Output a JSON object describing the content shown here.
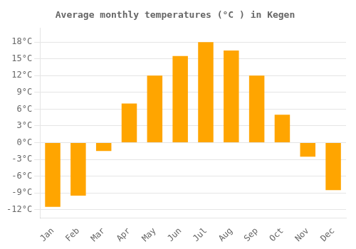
{
  "chart_data": {
    "type": "bar",
    "title": "Average monthly temperatures (°C ) in Kegen",
    "categories": [
      "Jan",
      "Feb",
      "Mar",
      "Apr",
      "May",
      "Jun",
      "Jul",
      "Aug",
      "Sep",
      "Oct",
      "Nov",
      "Dec"
    ],
    "values": [
      -11.5,
      -9.5,
      -1.5,
      7.0,
      12.0,
      15.5,
      18.0,
      16.5,
      12.0,
      5.0,
      -2.5,
      -8.5
    ],
    "color": "#FFA500",
    "ylim": [
      -13.5,
      20.5
    ],
    "yticks": [
      {
        "value": -12,
        "label": "-12°C"
      },
      {
        "value": -9,
        "label": "-9°C"
      },
      {
        "value": -6,
        "label": "-6°C"
      },
      {
        "value": -3,
        "label": "-3°C"
      },
      {
        "value": 0,
        "label": "0°C"
      },
      {
        "value": 3,
        "label": "3°C"
      },
      {
        "value": 6,
        "label": "6°C"
      },
      {
        "value": 9,
        "label": "9°C"
      },
      {
        "value": 12,
        "label": "12°C"
      },
      {
        "value": 15,
        "label": "15°C"
      },
      {
        "value": 18,
        "label": "18°C"
      }
    ],
    "grid": true
  }
}
